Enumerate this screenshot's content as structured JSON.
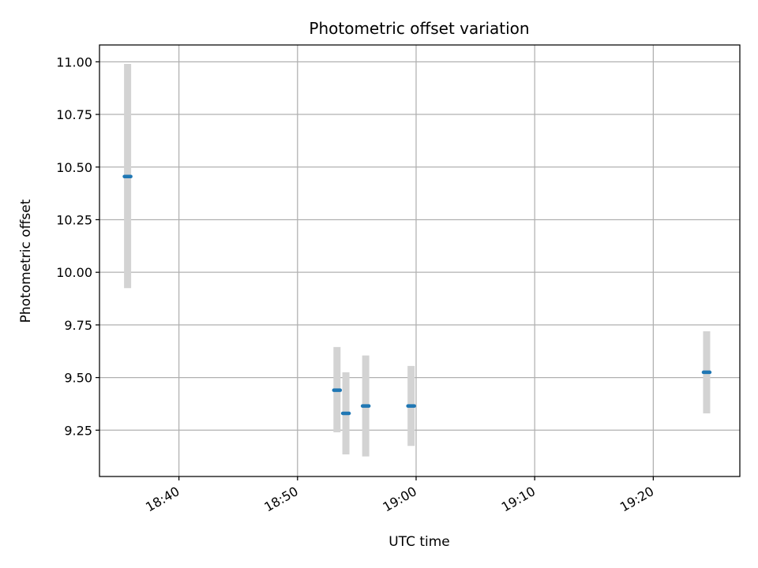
{
  "chart_data": {
    "type": "scatter",
    "title": "Photometric offset variation",
    "xlabel": "UTC time",
    "ylabel": "Photometric offset",
    "grid": true,
    "x_unit": "minutes after 18:00 UTC",
    "xlim": [
      33.3,
      87.3
    ],
    "ylim": [
      9.03,
      11.08
    ],
    "x_ticks": [
      {
        "value": 40,
        "label": "18:40"
      },
      {
        "value": 50,
        "label": "18:50"
      },
      {
        "value": 60,
        "label": "19:00"
      },
      {
        "value": 70,
        "label": "19:10"
      },
      {
        "value": 80,
        "label": "19:20"
      }
    ],
    "y_ticks": [
      {
        "value": 9.25,
        "label": "9.25"
      },
      {
        "value": 9.5,
        "label": "9.50"
      },
      {
        "value": 9.75,
        "label": "9.75"
      },
      {
        "value": 10.0,
        "label": "10.00"
      },
      {
        "value": 10.25,
        "label": "10.25"
      },
      {
        "value": 10.5,
        "label": "10.50"
      },
      {
        "value": 10.75,
        "label": "10.75"
      },
      {
        "value": 11.0,
        "label": "11.00"
      }
    ],
    "points": [
      {
        "time": "18:35:40",
        "x": 35.67,
        "y": 10.455,
        "err_low": 9.925,
        "err_high": 10.99
      },
      {
        "time": "18:53:20",
        "x": 53.33,
        "y": 9.44,
        "err_low": 9.24,
        "err_high": 9.645
      },
      {
        "time": "18:54:05",
        "x": 54.08,
        "y": 9.33,
        "err_low": 9.135,
        "err_high": 9.525
      },
      {
        "time": "18:55:45",
        "x": 55.75,
        "y": 9.365,
        "err_low": 9.125,
        "err_high": 9.605
      },
      {
        "time": "18:59:35",
        "x": 59.58,
        "y": 9.365,
        "err_low": 9.175,
        "err_high": 9.555
      },
      {
        "time": "19:24:30",
        "x": 84.5,
        "y": 9.525,
        "err_low": 9.33,
        "err_high": 9.72
      }
    ],
    "colors": {
      "marker": "#1f77b4",
      "errorbar": "#d3d3d3",
      "grid": "#b0b0b0",
      "axis": "#000000"
    }
  }
}
